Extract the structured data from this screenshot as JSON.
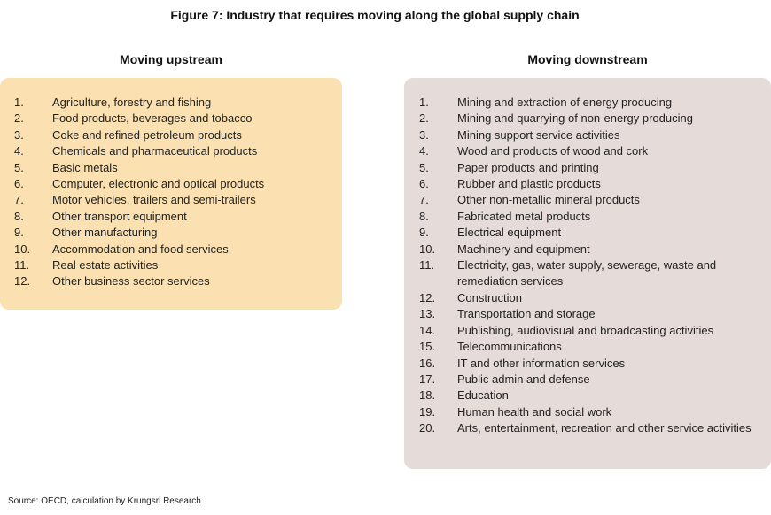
{
  "title": "Figure 7: Industry that requires moving along the global supply chain",
  "upstream": {
    "heading": "Moving upstream",
    "color": "#fbe1b2",
    "items": [
      {
        "num": "1.",
        "label": "Agriculture, forestry and fishing"
      },
      {
        "num": "2.",
        "label": "Food products, beverages and tobacco"
      },
      {
        "num": "3.",
        "label": "Coke and refined petroleum products"
      },
      {
        "num": "4.",
        "label": "Chemicals and pharmaceutical products"
      },
      {
        "num": "5.",
        "label": "Basic metals"
      },
      {
        "num": "6.",
        "label": "Computer, electronic and optical products"
      },
      {
        "num": "7.",
        "label": "Motor vehicles, trailers and semi-trailers"
      },
      {
        "num": "8.",
        "label": "Other transport equipment"
      },
      {
        "num": "9.",
        "label": "Other manufacturing"
      },
      {
        "num": "10.",
        "label": "Accommodation and food services"
      },
      {
        "num": "11.",
        "label": "Real estate activities"
      },
      {
        "num": "12.",
        "label": "Other business sector services"
      }
    ]
  },
  "downstream": {
    "heading": "Moving downstream",
    "color": "#e5dbd9",
    "items": [
      {
        "num": "1.",
        "label": "Mining and extraction of energy producing"
      },
      {
        "num": "2.",
        "label": "Mining and quarrying of non-energy producing"
      },
      {
        "num": "3.",
        "label": "Mining support service activities"
      },
      {
        "num": "4.",
        "label": "Wood and products of wood and cork"
      },
      {
        "num": "5.",
        "label": "Paper products and printing"
      },
      {
        "num": "6.",
        "label": "Rubber and plastic products"
      },
      {
        "num": "7.",
        "label": "Other non-metallic mineral products"
      },
      {
        "num": "8.",
        "label": "Fabricated metal products"
      },
      {
        "num": "9.",
        "label": "Electrical equipment"
      },
      {
        "num": "10.",
        "label": "Machinery and equipment"
      },
      {
        "num": "11.",
        "label": "Electricity, gas, water supply, sewerage, waste and remediation services"
      },
      {
        "num": "12.",
        "label": "Construction"
      },
      {
        "num": "13.",
        "label": "Transportation and storage"
      },
      {
        "num": "14.",
        "label": "Publishing, audiovisual and broadcasting activities"
      },
      {
        "num": "15.",
        "label": "Telecommunications"
      },
      {
        "num": "16.",
        "label": "IT and other information services"
      },
      {
        "num": "17.",
        "label": "Public admin and defense"
      },
      {
        "num": "18.",
        "label": "Education"
      },
      {
        "num": "19.",
        "label": "Human health and social work"
      },
      {
        "num": "20.",
        "label": "Arts, entertainment, recreation and other service activities"
      }
    ]
  },
  "source": "Source: OECD, calculation by Krungsri Research"
}
